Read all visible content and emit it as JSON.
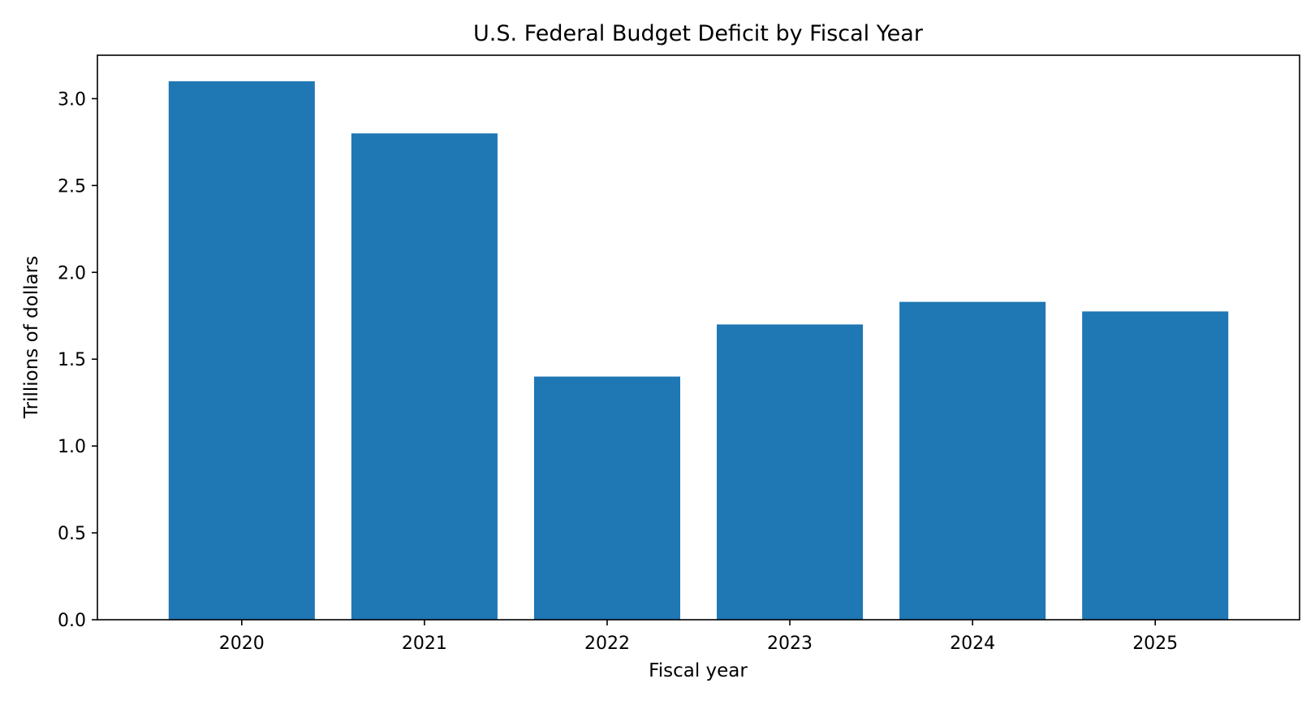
{
  "chart_data": {
    "type": "bar",
    "title": "U.S. Federal Budget Deficit by Fiscal Year",
    "xlabel": "Fiscal year",
    "ylabel": "Trillions of dollars",
    "categories": [
      "2020",
      "2021",
      "2022",
      "2023",
      "2024",
      "2025"
    ],
    "values": [
      3.1,
      2.8,
      1.4,
      1.7,
      1.83,
      1.775
    ],
    "ylim": [
      0,
      3.25
    ],
    "yticks": [
      0.0,
      0.5,
      1.0,
      1.5,
      2.0,
      2.5,
      3.0
    ],
    "ytick_labels": [
      "0.0",
      "0.5",
      "1.0",
      "1.5",
      "2.0",
      "2.5",
      "3.0"
    ],
    "grid": false,
    "bar_color": "#1f77b4"
  }
}
